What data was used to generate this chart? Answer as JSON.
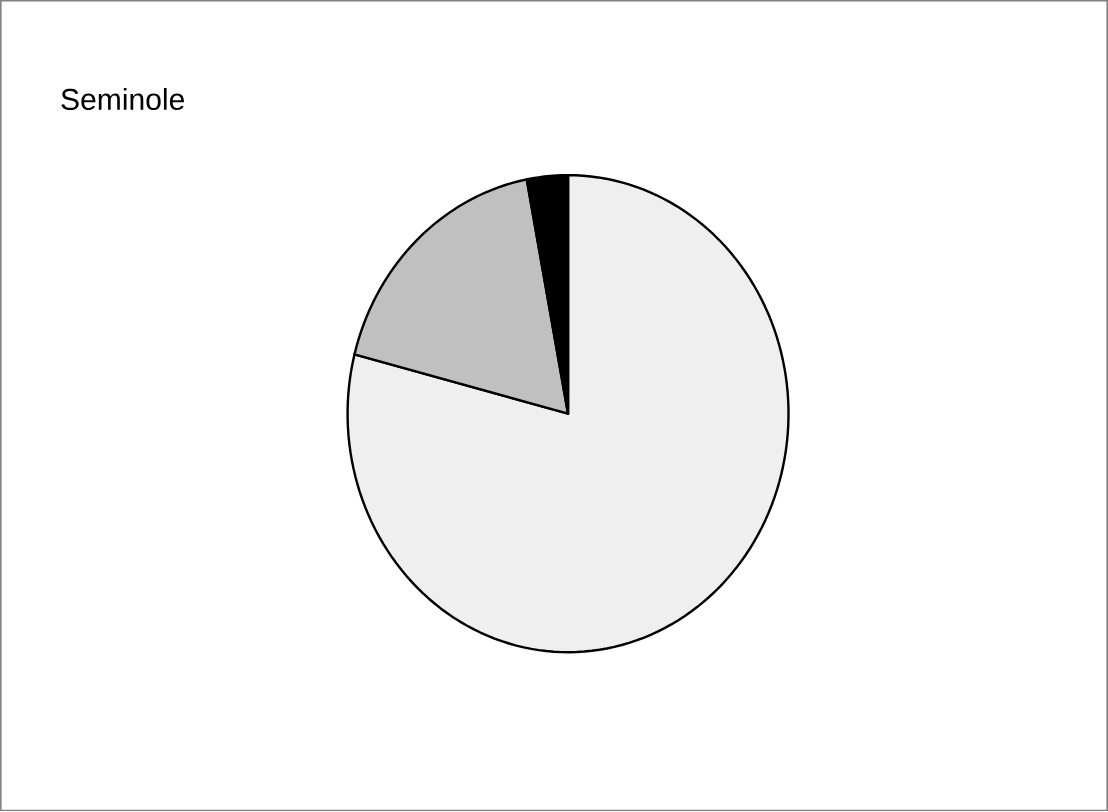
{
  "chart_data": {
    "type": "pie",
    "title": "Seminole",
    "categories": [
      null,
      null,
      null
    ],
    "values": [
      79,
      18,
      3
    ],
    "colors": [
      "#efefef",
      "#c0c0c0",
      "#000000"
    ]
  }
}
